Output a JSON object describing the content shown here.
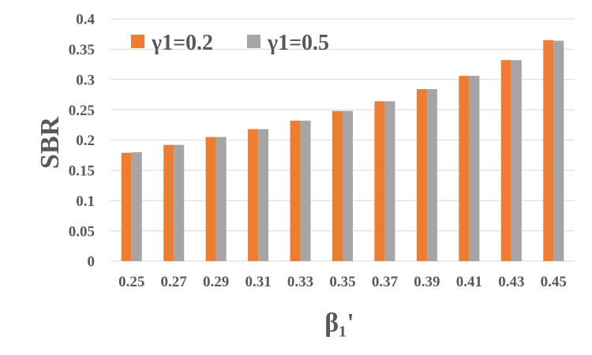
{
  "chart_data": {
    "type": "bar",
    "title": "",
    "xlabel": "β₁'",
    "ylabel": "SBR",
    "ylim": [
      0,
      0.4
    ],
    "yticks": [
      0,
      0.05,
      0.1,
      0.15,
      0.2,
      0.25,
      0.3,
      0.35,
      0.4
    ],
    "ytick_labels": [
      "0",
      "0.05",
      "0.1",
      "0.15",
      "0.2",
      "0.25",
      "0.3",
      "0.35",
      "0.4"
    ],
    "categories": [
      "0.25",
      "0.27",
      "0.29",
      "0.31",
      "0.33",
      "0.35",
      "0.37",
      "0.39",
      "0.41",
      "0.43",
      "0.45"
    ],
    "series": [
      {
        "name": "γ1=0.2",
        "color": "#ED7D31",
        "values": [
          0.179,
          0.192,
          0.205,
          0.218,
          0.232,
          0.248,
          0.264,
          0.284,
          0.306,
          0.332,
          0.365
        ]
      },
      {
        "name": "γ1=0.5",
        "color": "#A5A5A5",
        "values": [
          0.18,
          0.192,
          0.205,
          0.218,
          0.232,
          0.248,
          0.264,
          0.284,
          0.306,
          0.332,
          0.364
        ]
      }
    ],
    "grid": true,
    "grid_color": "#D9D9D9",
    "legend_position": "top-left"
  }
}
